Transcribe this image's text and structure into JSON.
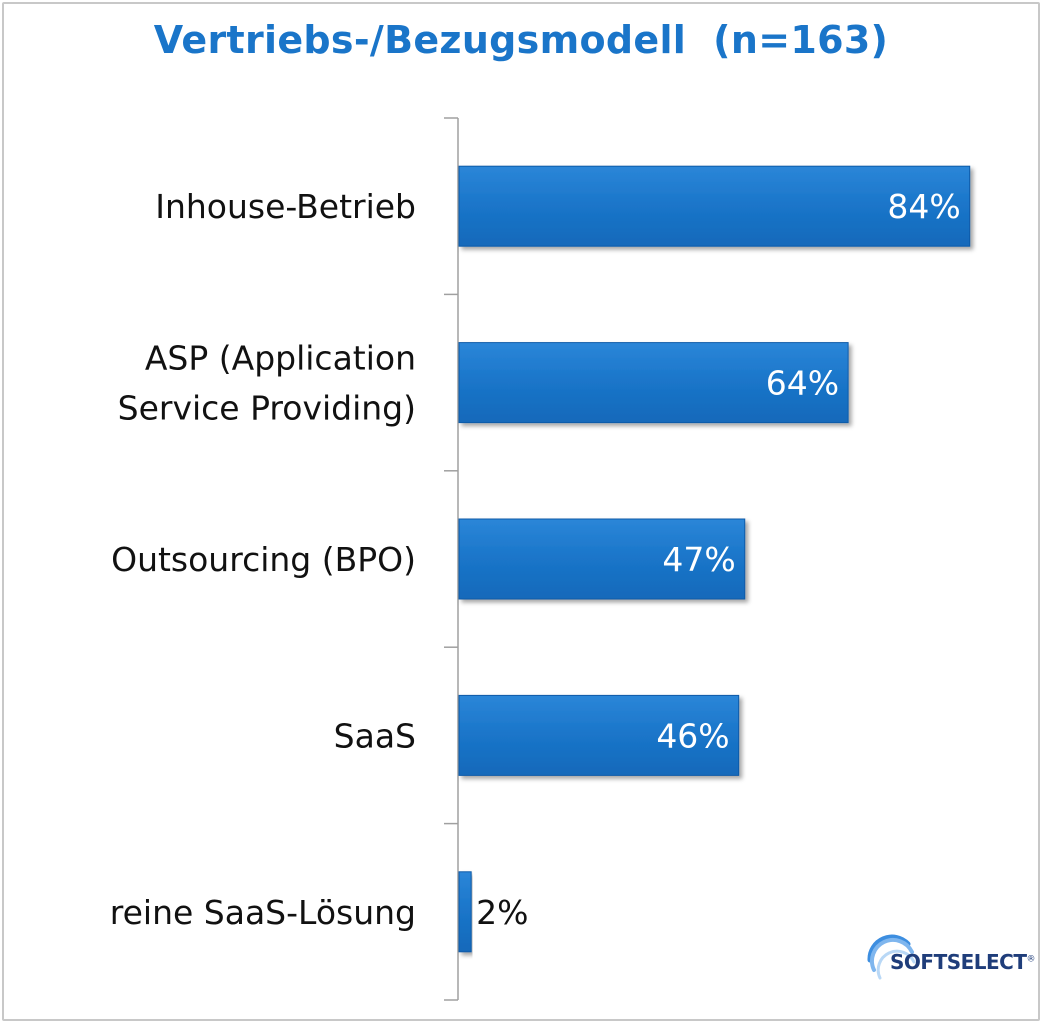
{
  "chart_data": {
    "type": "bar",
    "orientation": "horizontal",
    "title": "Vertriebs-/Bezugsmodell  (n=163)",
    "categories": [
      [
        "Inhouse-Betrieb"
      ],
      [
        "ASP (Application",
        "Service Providing)"
      ],
      [
        "Outsourcing (BPO)"
      ],
      [
        "SaaS"
      ],
      [
        "reine SaaS-Lösung"
      ]
    ],
    "values": [
      84,
      64,
      47,
      46,
      2
    ],
    "value_labels": [
      "84%",
      "64%",
      "47%",
      "46%",
      "2%"
    ],
    "xlim": [
      0,
      100
    ],
    "grid": false,
    "legend": "none",
    "colors": {
      "bar": "#1a75c9",
      "bar_edge": "#0f5aa8",
      "title": "#1a75c9",
      "label_inside": "#ffffff",
      "label_outside": "#111111",
      "axis": "#a0a0a0"
    }
  },
  "logo": {
    "text": "SOFTSELECT",
    "mark": "®"
  }
}
